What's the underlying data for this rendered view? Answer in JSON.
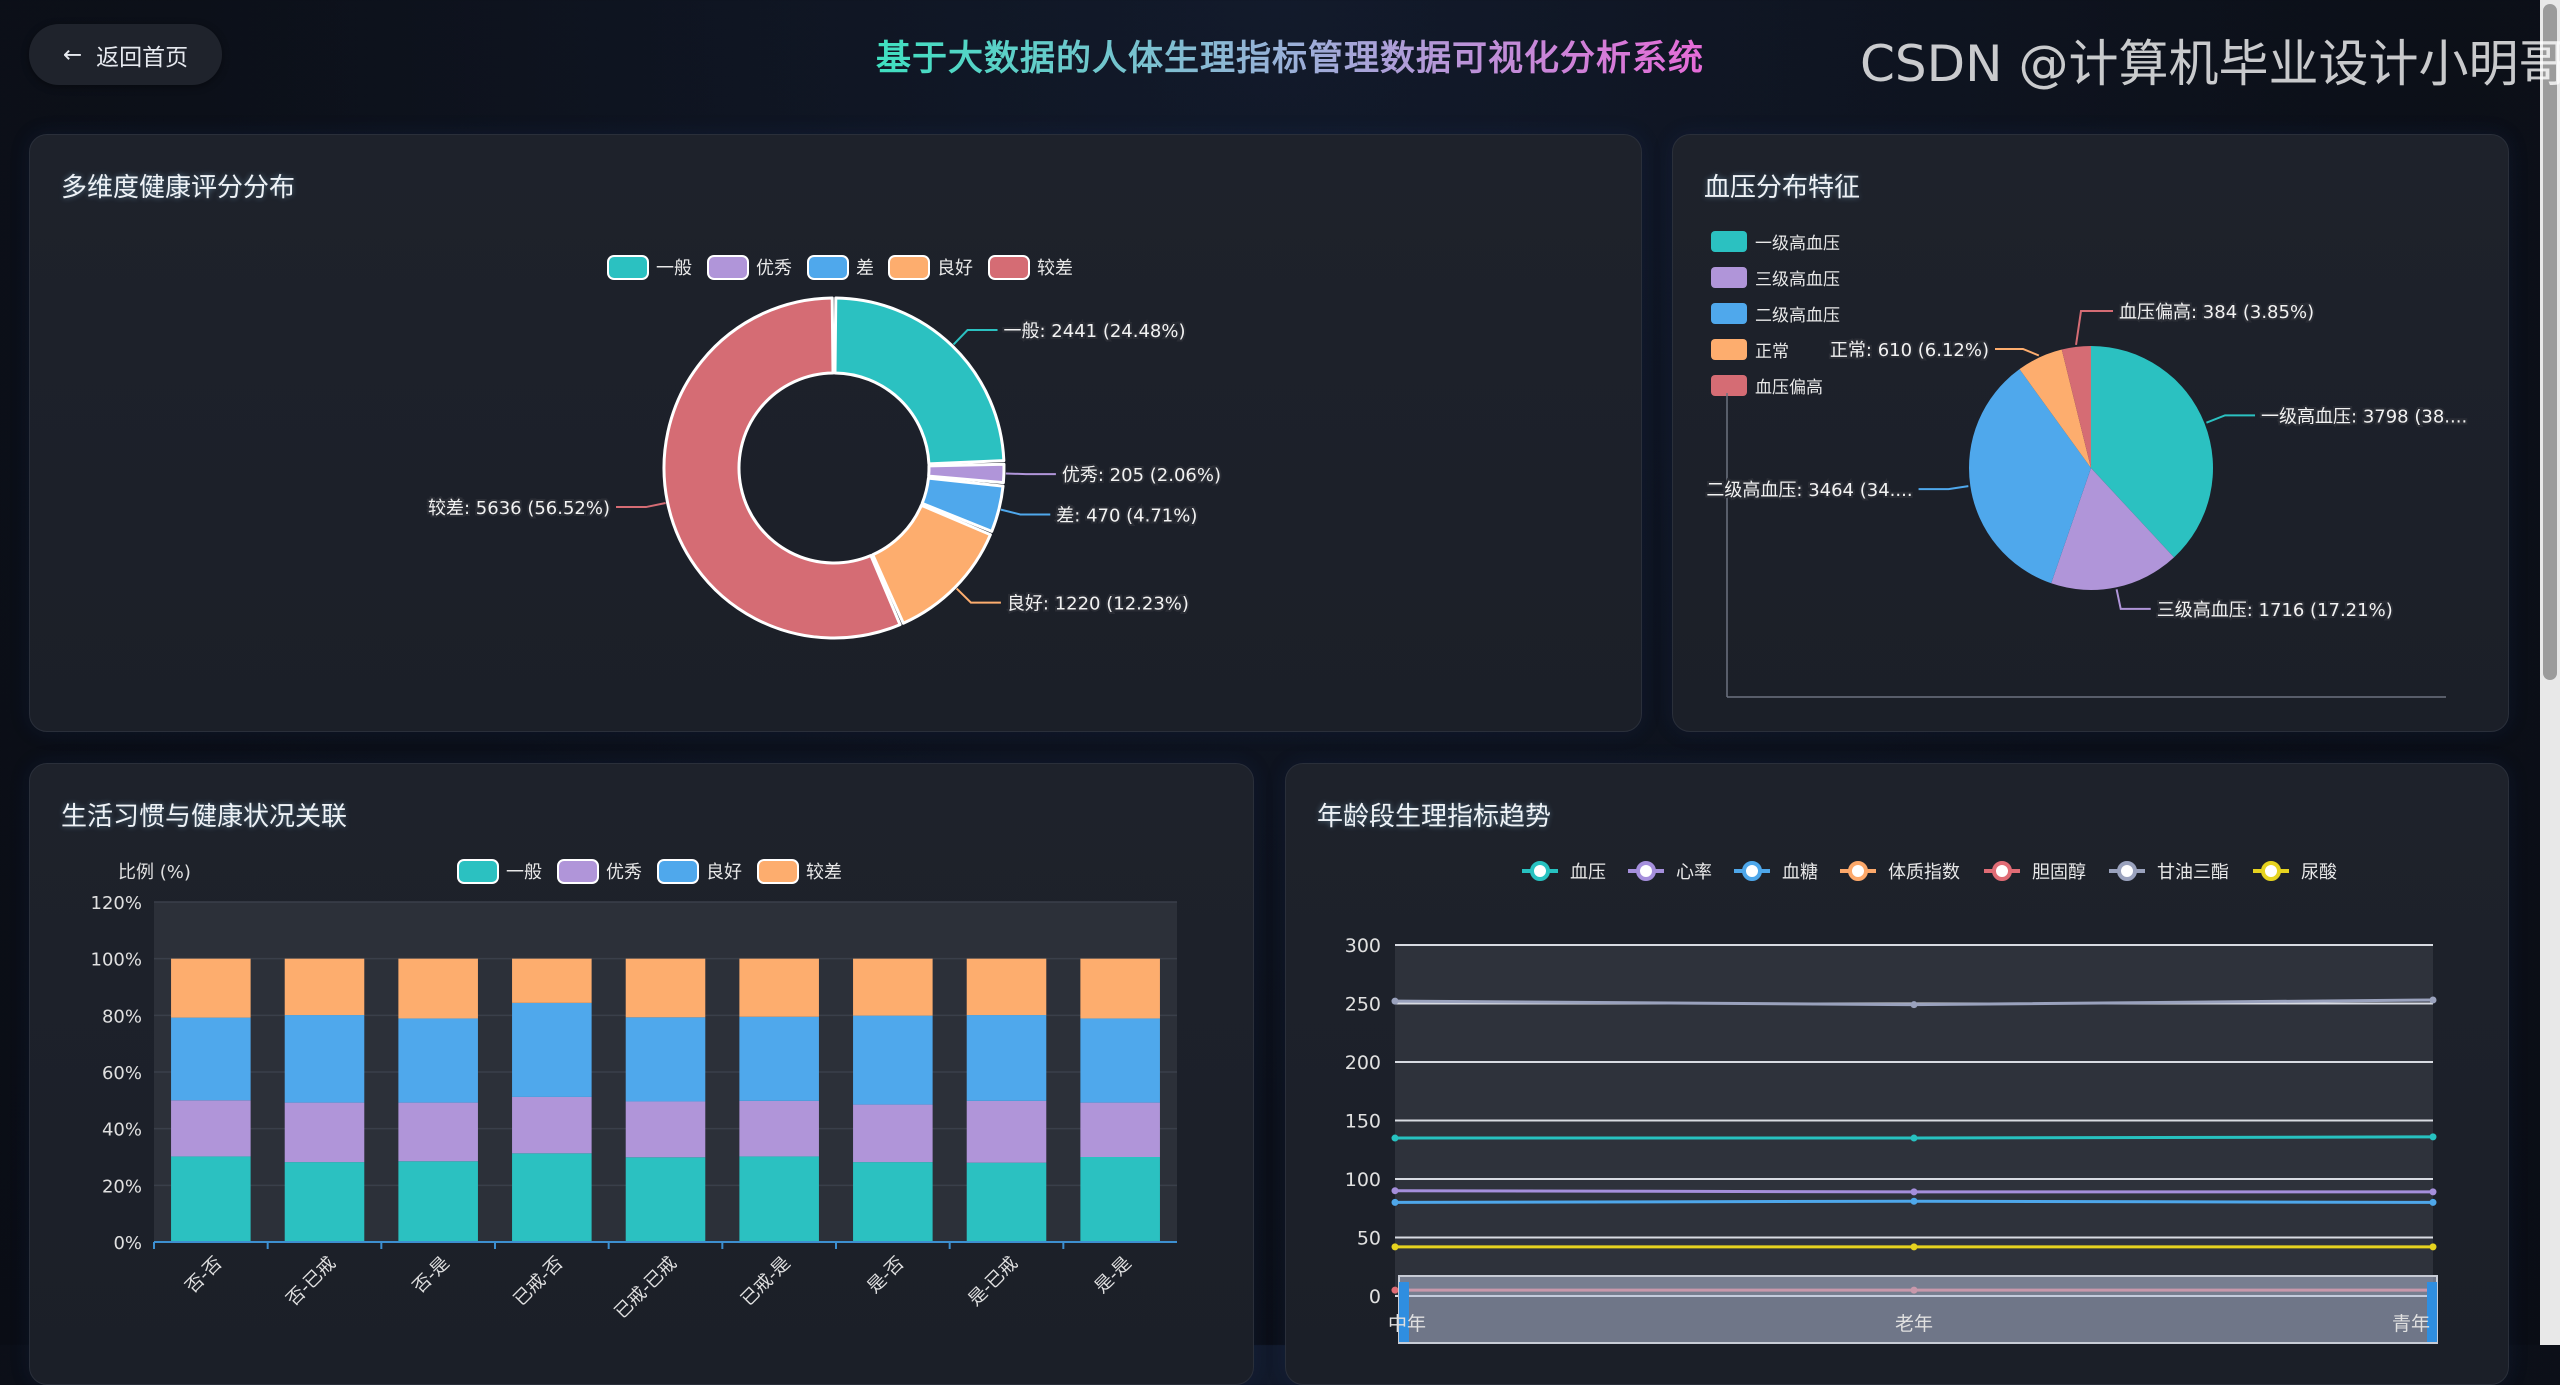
{
  "header": {
    "back_label": "返回首页",
    "back_icon": "arrow-left-icon",
    "title": "基于大数据的人体生理指标管理数据可视化分析系统"
  },
  "panels": {
    "health_score": {
      "title": "多维度健康评分分布"
    },
    "blood_pressure": {
      "title": "血压分布特征"
    },
    "lifestyle": {
      "title": "生活习惯与健康状况关联"
    },
    "age_trend": {
      "title": "年龄段生理指标趋势"
    }
  },
  "watermark": "CSDN @计算机毕业设计小明哥",
  "chart_data": [
    {
      "type": "pie",
      "variant": "donut",
      "legend_position": "top",
      "categories": [
        "一般",
        "优秀",
        "差",
        "良好",
        "较差"
      ],
      "values": [
        2441,
        205,
        470,
        1220,
        5636
      ],
      "percents": [
        24.48,
        2.06,
        4.71,
        12.23,
        56.52
      ],
      "labels": [
        "一般: 2441 (24.48%)",
        "优秀: 205 (2.06%)",
        "差: 470 (4.71%)",
        "良好: 1220 (12.23%)",
        "较差: 5636 (56.52%)"
      ],
      "colors": [
        "#2bc1c1",
        "#b095d9",
        "#4fa8ec",
        "#fdad6e",
        "#d56c74"
      ]
    },
    {
      "type": "pie",
      "legend_position": "left",
      "legend": [
        "一级高血压",
        "三级高血压",
        "二级高血压",
        "正常",
        "血压偏高"
      ],
      "categories": [
        "一级高血压",
        "三级高血压",
        "二级高血压",
        "正常",
        "血压偏高"
      ],
      "values": [
        3798,
        1716,
        3464,
        610,
        384
      ],
      "labels": [
        "一级高血压: 3798 (38....",
        "三级高血压: 1716 (17.21%)",
        "二级高血压: 3464 (34....",
        "正常: 610 (6.12%)",
        "血压偏高: 384 (3.85%)"
      ],
      "colors": [
        "#2bc1c1",
        "#b095d9",
        "#4fa8ec",
        "#fdad6e",
        "#d56c74"
      ]
    },
    {
      "type": "bar",
      "stacked": true,
      "ylabel": "比例 (%)",
      "ylim": [
        0,
        120
      ],
      "yticks": [
        "0%",
        "20%",
        "40%",
        "60%",
        "80%",
        "100%",
        "120%"
      ],
      "categories": [
        "否-否",
        "否-已戒",
        "否-是",
        "已戒-否",
        "已戒-已戒",
        "已戒-是",
        "是-否",
        "是-已戒",
        "是-是"
      ],
      "series": [
        {
          "name": "一般",
          "color": "#2bc1c1",
          "values": [
            30.2,
            28.2,
            28.5,
            31.3,
            29.9,
            30.2,
            28.2,
            28.0,
            30.0
          ]
        },
        {
          "name": "优秀",
          "color": "#b095d9",
          "values": [
            19.8,
            21.0,
            20.7,
            19.9,
            19.7,
            19.6,
            20.3,
            21.8,
            19.2
          ]
        },
        {
          "name": "良好",
          "color": "#4fa8ec",
          "values": [
            29.2,
            30.9,
            29.7,
            33.2,
            29.7,
            29.7,
            31.4,
            30.3,
            29.7
          ]
        },
        {
          "name": "较差",
          "color": "#fdad6e",
          "values": [
            20.8,
            19.9,
            21.1,
            15.6,
            20.7,
            20.5,
            20.1,
            19.9,
            21.1
          ]
        }
      ],
      "legend_position": "top",
      "grid": true
    },
    {
      "type": "line",
      "ylim": [
        0,
        300
      ],
      "yticks": [
        "0",
        "50",
        "100",
        "150",
        "200",
        "250",
        "300"
      ],
      "categories": [
        "中年",
        "老年",
        "青年"
      ],
      "series": [
        {
          "name": "血压",
          "color": "#27c2c1",
          "values": [
            135,
            135,
            136
          ]
        },
        {
          "name": "心率",
          "color": "#a58fdc",
          "values": [
            90,
            89,
            89
          ]
        },
        {
          "name": "血糖",
          "color": "#4ea7ea",
          "values": [
            80,
            81,
            80
          ]
        },
        {
          "name": "体质指数",
          "color": "#fca86a",
          "values": [
            null,
            null,
            null
          ]
        },
        {
          "name": "胆固醇",
          "color": "#e06c75",
          "values": [
            5,
            5,
            5
          ]
        },
        {
          "name": "甘油三酯",
          "color": "#9aa2bd",
          "values": [
            252,
            249,
            253
          ]
        },
        {
          "name": "尿酸",
          "color": "#e6d31f",
          "values": [
            42,
            42,
            42
          ]
        }
      ],
      "legend_position": "top",
      "grid": true,
      "data_zoom": true
    }
  ]
}
